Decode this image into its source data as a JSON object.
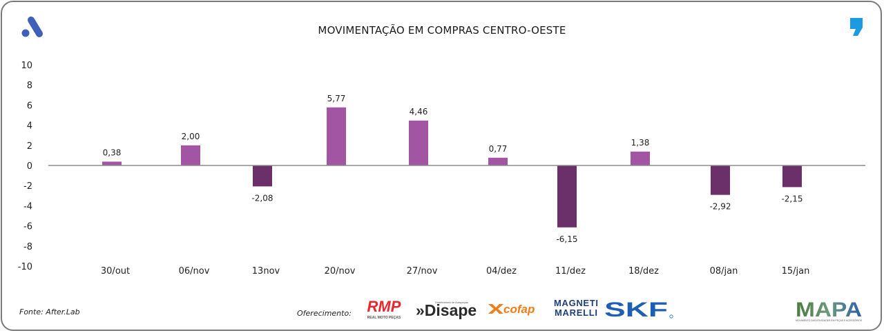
{
  "header": {
    "title": "MOVIMENTAÇÃO EM COMPRAS CENTRO-OESTE",
    "left_logo_icon": "brand-a-logo-icon",
    "right_logo_icon": "comma-logo-icon"
  },
  "chart_data": {
    "type": "bar",
    "title": "MOVIMENTAÇÃO EM COMPRAS CENTRO-OESTE",
    "xlabel": "",
    "ylabel": "",
    "ylim": [
      -10,
      10
    ],
    "yticks": [
      10,
      8,
      6,
      4,
      2,
      0,
      -2,
      -4,
      -6,
      -8,
      -10
    ],
    "ytick_labels": [
      "10",
      "8",
      "6",
      "4",
      "2",
      "0",
      "-2",
      "-4",
      "-6",
      "-8",
      "-10"
    ],
    "categories": [
      "30/out",
      "06/nov",
      "13nov",
      "20/nov",
      "27/nov",
      "04/dez",
      "11/dez",
      "18/dez",
      "08/jan",
      "15/jan"
    ],
    "values": [
      0.38,
      2.0,
      -2.08,
      5.77,
      4.46,
      0.77,
      -6.15,
      1.38,
      -2.92,
      -2.15
    ],
    "value_labels": [
      "0,38",
      "2,00",
      "-2,08",
      "5,77",
      "4,46",
      "0,77",
      "-6,15",
      "1,38",
      "-2,92",
      "-2,15"
    ],
    "grid": false,
    "legend": "none",
    "colors": {
      "positive": "#a155a3",
      "negative": "#6b3069",
      "zero_line": "#8c8c8c"
    }
  },
  "footer": {
    "source": "Fonte: After.Lab",
    "offer_label": "Oferecimento:",
    "sponsors": [
      {
        "name": "RMP",
        "tagline": "REAL MOTO PEÇAS",
        "color": "#e8262c"
      },
      {
        "name": "»Disape",
        "tagline": "Distribuidora de Autopeças",
        "color": "#2a2a2a"
      },
      {
        "name": "cofap",
        "color": "#f07d1a"
      },
      {
        "name": "MAGNETI MARELLI",
        "line1": "MAGNETI",
        "line2": "MARELLI",
        "color": "#1c3f7c"
      },
      {
        "name": "SKF",
        "color": "#1e5fb4"
      }
    ],
    "mapa": {
      "name": "MAPA",
      "tagline": "MOVIMENTO DAS ATIVIDADES EM PEÇAS E ACESSÓRIOS"
    }
  }
}
